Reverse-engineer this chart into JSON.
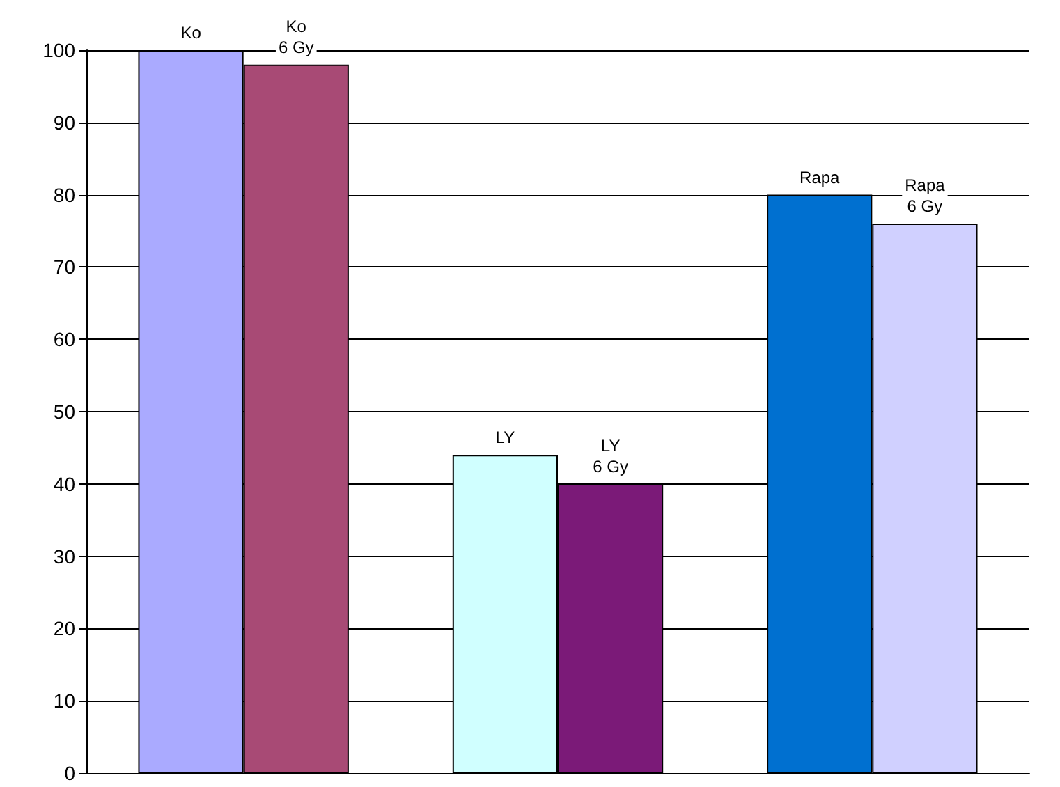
{
  "chart_data": {
    "type": "bar",
    "categories": [
      null,
      null,
      null
    ],
    "series": [
      {
        "name": "Ko",
        "color": "#aaaaff",
        "values": [
          100,
          null,
          null
        ]
      },
      {
        "name": "Ko 6 Gy",
        "color": "#a84a75",
        "values": [
          98,
          null,
          null
        ]
      },
      {
        "name": "LY",
        "color": "#d0ffff",
        "values": [
          null,
          44,
          null
        ]
      },
      {
        "name": "LY 6 Gy",
        "color": "#7b1a78",
        "values": [
          null,
          40,
          null
        ]
      },
      {
        "name": "Rapa",
        "color": "#0070d0",
        "values": [
          null,
          null,
          80
        ]
      },
      {
        "name": "Rapa 6 Gy",
        "color": "#d0d0ff",
        "values": [
          null,
          null,
          76
        ]
      }
    ],
    "ylim": [
      0,
      100
    ],
    "yticks": [
      0,
      10,
      20,
      30,
      40,
      50,
      60,
      70,
      80,
      90,
      100
    ],
    "grid": "y",
    "legend": false
  }
}
